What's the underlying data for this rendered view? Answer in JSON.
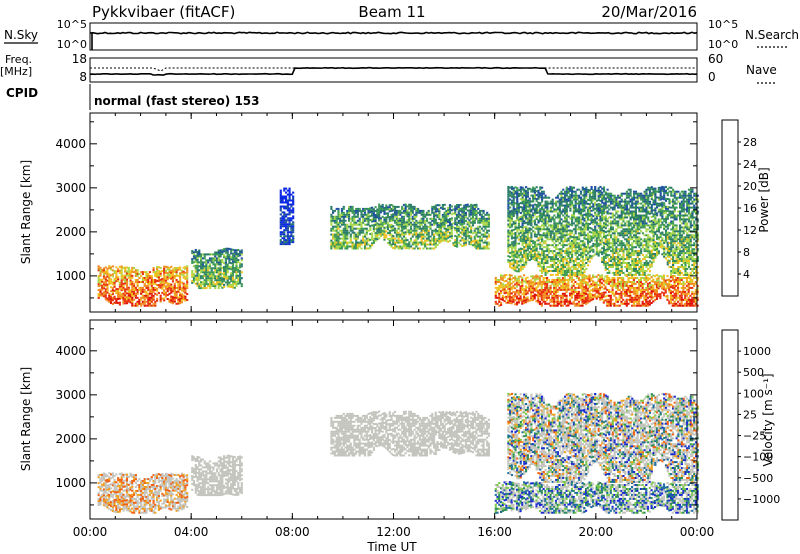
{
  "header": {
    "station": "Pykkvibaer (fitACF)",
    "beam": "Beam 11",
    "date": "20/Mar/2016"
  },
  "strips": {
    "nsky_label": "N.Sky",
    "nsearch_label": "N.Search",
    "freq_label_top": "Freq.",
    "freq_label_unit": "[MHz]",
    "nave_label": "Nave",
    "cpid_label": "CPID",
    "noise_ticks_left": [
      "10^5",
      "10^0"
    ],
    "noise_ticks_right": [
      "10^5",
      "10^0"
    ],
    "freq_ticks": [
      "18",
      "8"
    ],
    "nave_ticks": [
      "60",
      "0"
    ],
    "cpid_text": "normal (fast stereo) 153"
  },
  "panels": {
    "power_colorbar_label": "Power [dB]",
    "velocity_colorbar_label": "Velocity [m s⁻¹]",
    "range_label": "Slant Range [km]",
    "time_label": "Time UT"
  },
  "colors": {
    "velocity_gray": "#c4c4be",
    "axis": "#000000",
    "power_scale": [
      "#0a28e6",
      "#1e50a0",
      "#2a7a6a",
      "#3c9a55",
      "#a8d84a",
      "#f0c020",
      "#f08c20",
      "#e83010",
      "#e01000"
    ],
    "velocity_scale": [
      "#1a2ad0",
      "#1a6aa0",
      "#2a8a5a",
      "#7cc84a",
      "#c4c4be",
      "#c4c4be",
      "#f0a020",
      "#f06010",
      "#e01000"
    ]
  },
  "chart_data": [
    {
      "type": "heatmap",
      "title": "Power",
      "xlabel": "",
      "ylabel": "Slant Range [km]",
      "x_ticks": [
        "00:00",
        "04:00",
        "08:00",
        "12:00",
        "16:00",
        "20:00",
        "00:00"
      ],
      "y_ticks": [
        "1000",
        "2000",
        "3000",
        "4000"
      ],
      "xlim_hours": [
        0,
        24
      ],
      "ylim_km": [
        180,
        4700
      ],
      "colorbar": {
        "label": "Power [dB]",
        "ticks": [
          "4",
          "8",
          "12",
          "16",
          "20",
          "24",
          "28"
        ],
        "range": [
          0,
          30
        ]
      },
      "echo_regions": [
        {
          "t": [
            0.3,
            3.8
          ],
          "r": [
            300,
            1200
          ],
          "strength": "high"
        },
        {
          "t": [
            4.0,
            6.0
          ],
          "r": [
            700,
            1600
          ],
          "strength": "medium"
        },
        {
          "t": [
            7.5,
            8.0
          ],
          "r": [
            1700,
            3000
          ],
          "strength": "low"
        },
        {
          "t": [
            9.5,
            15.8
          ],
          "r": [
            1600,
            2600
          ],
          "strength": "medium"
        },
        {
          "t": [
            16.0,
            24.0
          ],
          "r": [
            300,
            1000
          ],
          "strength": "high"
        },
        {
          "t": [
            16.5,
            24.0
          ],
          "r": [
            1000,
            3000
          ],
          "strength": "medium"
        }
      ]
    },
    {
      "type": "heatmap",
      "title": "Velocity",
      "xlabel": "Time UT",
      "ylabel": "Slant Range [km]",
      "x_ticks": [
        "00:00",
        "04:00",
        "08:00",
        "12:00",
        "16:00",
        "20:00",
        "00:00"
      ],
      "y_ticks": [
        "1000",
        "2000",
        "3000",
        "4000"
      ],
      "xlim_hours": [
        0,
        24
      ],
      "ylim_km": [
        180,
        4700
      ],
      "colorbar": {
        "label": "Velocity [m s⁻¹]",
        "ticks": [
          "1000",
          "500",
          "100",
          "25",
          "−25",
          "−100",
          "−500",
          "−1000"
        ],
        "range": [
          -1200,
          1200
        ]
      },
      "echo_regions": [
        {
          "t": [
            0.3,
            3.8
          ],
          "r": [
            300,
            1200
          ],
          "velocity": "negative"
        },
        {
          "t": [
            4.0,
            6.0
          ],
          "r": [
            700,
            1600
          ],
          "velocity": "near-zero"
        },
        {
          "t": [
            9.5,
            15.8
          ],
          "r": [
            1600,
            2600
          ],
          "velocity": "near-zero"
        },
        {
          "t": [
            16.0,
            24.0
          ],
          "r": [
            300,
            1000
          ],
          "velocity": "positive"
        },
        {
          "t": [
            16.5,
            24.0
          ],
          "r": [
            1000,
            3000
          ],
          "velocity": "mixed"
        }
      ]
    }
  ]
}
